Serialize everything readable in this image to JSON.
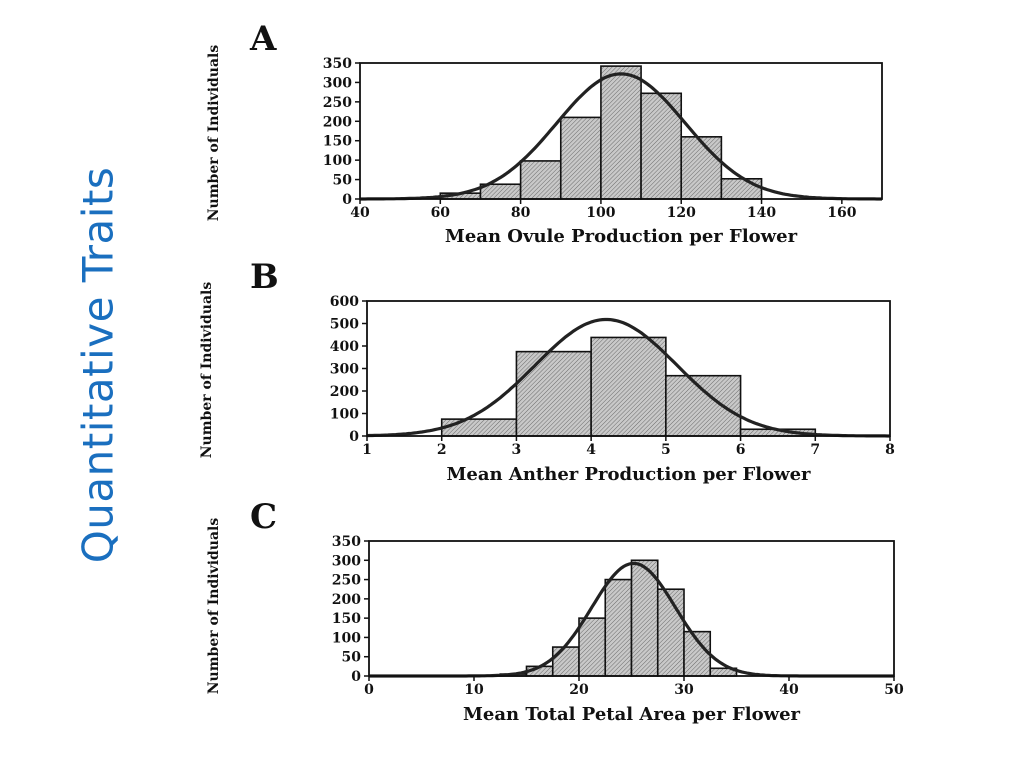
{
  "slide": {
    "title": "Quantitative Traits"
  },
  "colors": {
    "title": "#1a6fbf",
    "curve": "#222222",
    "bar_fill": "#b8b8b8",
    "ink": "#111111"
  },
  "chart_data": [
    {
      "panel": "A",
      "type": "bar",
      "ylabel": "Number of Individuals",
      "xlabel": "Mean Ovule Production per Flower",
      "xlim": [
        40,
        170
      ],
      "ylim": [
        0,
        350
      ],
      "xticks": [
        40,
        60,
        80,
        100,
        120,
        140,
        160
      ],
      "yticks": [
        0,
        50,
        100,
        150,
        200,
        250,
        300,
        350
      ],
      "bins": [
        [
          60,
          70
        ],
        [
          70,
          80
        ],
        [
          80,
          90
        ],
        [
          90,
          100
        ],
        [
          100,
          110
        ],
        [
          110,
          120
        ],
        [
          120,
          130
        ],
        [
          130,
          140
        ]
      ],
      "values": [
        15,
        38,
        98,
        210,
        342,
        272,
        160,
        52
      ],
      "curve": {
        "type": "normal",
        "mean": 105,
        "sd": 16,
        "peak": 322
      },
      "grid": false
    },
    {
      "panel": "B",
      "type": "bar",
      "ylabel": "Number of Individuals",
      "xlabel": "Mean Anther Production per Flower",
      "xlim": [
        1,
        8
      ],
      "ylim": [
        0,
        600
      ],
      "xticks": [
        1,
        2,
        3,
        4,
        5,
        6,
        7,
        8
      ],
      "yticks": [
        0,
        100,
        200,
        300,
        400,
        500,
        600
      ],
      "bins": [
        [
          2,
          3
        ],
        [
          3,
          4
        ],
        [
          4,
          5
        ],
        [
          5,
          6
        ],
        [
          6,
          7
        ]
      ],
      "values": [
        75,
        375,
        438,
        268,
        30
      ],
      "curve": {
        "type": "normal",
        "mean": 4.2,
        "sd": 0.95,
        "peak": 518
      },
      "grid": false
    },
    {
      "panel": "C",
      "type": "bar",
      "ylabel": "Number of Individuals",
      "xlabel": "Mean Total Petal Area per Flower",
      "xlim": [
        0,
        50
      ],
      "ylim": [
        0,
        350
      ],
      "xticks": [
        0,
        10,
        20,
        30,
        40,
        50
      ],
      "yticks": [
        0,
        50,
        100,
        150,
        200,
        250,
        300,
        350
      ],
      "bins": [
        [
          12.5,
          15
        ],
        [
          15,
          17.5
        ],
        [
          17.5,
          20
        ],
        [
          20,
          22.5
        ],
        [
          22.5,
          25
        ],
        [
          25,
          27.5
        ],
        [
          27.5,
          30
        ],
        [
          30,
          32.5
        ],
        [
          32.5,
          35
        ]
      ],
      "values": [
        5,
        25,
        75,
        150,
        250,
        300,
        225,
        115,
        20
      ],
      "curve": {
        "type": "normal",
        "mean": 25.2,
        "sd": 4.0,
        "peak": 292
      },
      "grid": false
    }
  ]
}
